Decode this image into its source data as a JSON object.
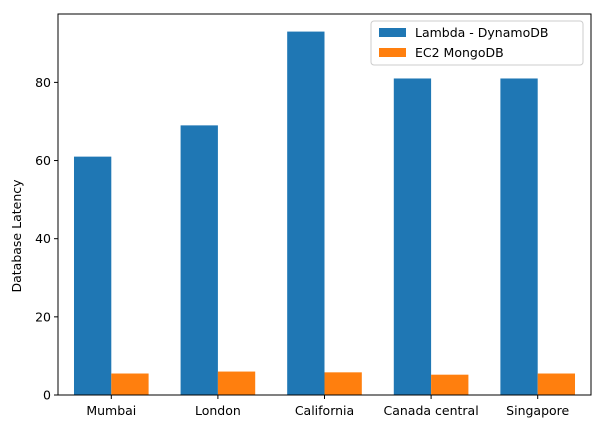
{
  "chart_data": {
    "type": "bar",
    "title": "",
    "xlabel": "",
    "ylabel": "Database Latency",
    "categories": [
      "Mumbai",
      "London",
      "California",
      "Canada central",
      "Singapore"
    ],
    "series": [
      {
        "name": "Lambda - DynamoDB",
        "color": "#1f77b4",
        "values": [
          61,
          69,
          93,
          81,
          81
        ]
      },
      {
        "name": "EC2 MongoDB",
        "color": "#ff7f0e",
        "values": [
          5.5,
          6.0,
          5.8,
          5.2,
          5.5
        ]
      }
    ],
    "ylim": [
      0,
      97.5
    ],
    "yticks": [
      0,
      20,
      40,
      60,
      80
    ],
    "grid": false,
    "legend_position": "top-right"
  }
}
